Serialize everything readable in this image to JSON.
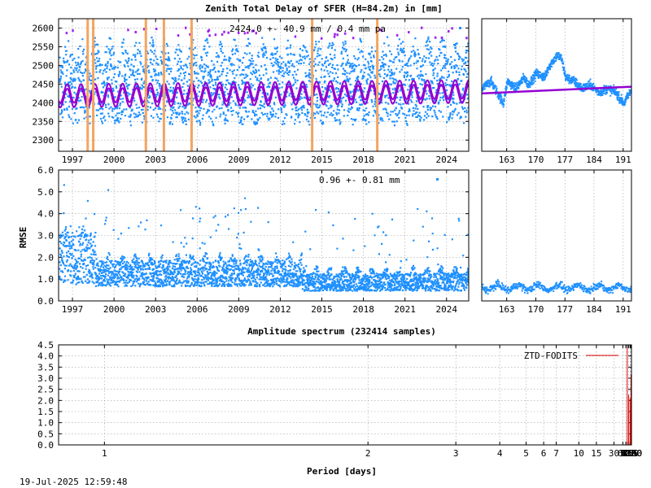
{
  "title": "Zenith Total Delay of SFER (H=84.2m) in [mm]",
  "footer_timestamp": "19-Jul-2025 12:59:48",
  "colors": {
    "ztd_points": "#1e90ff",
    "model": "#9400d3",
    "outlier": "#a020f0",
    "breaks": "#f4a460",
    "spectrum": "#e00000"
  },
  "chart_data": [
    {
      "id": "ztd_main",
      "type": "scatter",
      "annotation": "2424.0 +-  40.9 mm /  0.4 mm pa",
      "xlim": [
        1996.0,
        2025.6
      ],
      "ylim": [
        2270,
        2625
      ],
      "x_ticks": [
        1997,
        2000,
        2003,
        2006,
        2009,
        2012,
        2015,
        2018,
        2021,
        2024
      ],
      "x_tick_labels": [
        "1997",
        "2000",
        "2003",
        "2006",
        "2009",
        "2012",
        "2015",
        "2018",
        "2021",
        "2024"
      ],
      "y_ticks": [
        2300,
        2350,
        2400,
        2450,
        2500,
        2550,
        2600
      ],
      "y_tick_labels": [
        "2300",
        "2350",
        "2400",
        "2450",
        "2500",
        "2550",
        "2600"
      ],
      "mean": 2424.0,
      "stdev": 40.9,
      "trend_mm_per_year": 0.4,
      "seasonal_amplitude": 25,
      "seasonal_peak_fraction": 0.62,
      "envelope": {
        "low": [
          2340,
          2365
        ],
        "high": [
          2520,
          2580
        ]
      },
      "breaks": [
        1998.1,
        1998.5,
        2002.3,
        2003.6,
        2005.6,
        2014.3,
        2019.0
      ],
      "grid": true
    },
    {
      "id": "ztd_zoom",
      "type": "scatter",
      "xlim": [
        157,
        193
      ],
      "ylim": [
        2270,
        2625
      ],
      "x_ticks": [
        163,
        170,
        177,
        184,
        191
      ],
      "x_tick_labels": [
        "163",
        "170",
        "177",
        "184",
        "191"
      ],
      "model_line": [
        [
          157,
          2425
        ],
        [
          193,
          2443
        ]
      ],
      "grid": true
    },
    {
      "id": "rmse_main",
      "type": "scatter",
      "annotation": "0.96 +-  0.81 mm",
      "ylabel": "RMSE",
      "xlim": [
        1996.0,
        2025.6
      ],
      "ylim": [
        0.0,
        6.0
      ],
      "x_ticks": [
        1997,
        2000,
        2003,
        2006,
        2009,
        2012,
        2015,
        2018,
        2021,
        2024
      ],
      "x_tick_labels": [
        "1997",
        "2000",
        "2003",
        "2006",
        "2009",
        "2012",
        "2015",
        "2018",
        "2021",
        "2024"
      ],
      "y_ticks": [
        0.0,
        1.0,
        2.0,
        3.0,
        4.0,
        5.0,
        6.0
      ],
      "y_tick_labels": [
        "0.0",
        "1.0",
        "2.0",
        "3.0",
        "4.0",
        "5.0",
        "6.0"
      ],
      "mean": 0.96,
      "stdev": 0.81,
      "grid": true
    },
    {
      "id": "rmse_zoom",
      "type": "scatter",
      "xlim": [
        157,
        193
      ],
      "ylim": [
        0.0,
        6.0
      ],
      "x_ticks": [
        163,
        170,
        177,
        184,
        191
      ],
      "x_tick_labels": [
        "163",
        "170",
        "177",
        "184",
        "191"
      ],
      "grid": true
    },
    {
      "id": "spectrum",
      "type": "line",
      "title": "Amplitude spectrum (232414 samples)",
      "xlabel": "Period [days]",
      "x_scale": "reciprocal (frequency-linear)",
      "xlim": [
        0.92,
        8760
      ],
      "ylim": [
        0.0,
        4.5
      ],
      "x_ticks": [
        1,
        2,
        3,
        4,
        5,
        6,
        7,
        10,
        15,
        30,
        61,
        91,
        122,
        183,
        365,
        730,
        2190,
        4380,
        8760
      ],
      "x_tick_labels": [
        "1",
        "2",
        "3",
        "4",
        "5",
        "6",
        "7",
        "10",
        "15",
        "30",
        "61",
        "91",
        "122",
        "183",
        "365",
        "730",
        "2190",
        "4380",
        "8760"
      ],
      "y_ticks": [
        0.0,
        0.5,
        1.0,
        1.5,
        2.0,
        2.5,
        3.0,
        3.5,
        4.0,
        4.5
      ],
      "y_tick_labels": [
        "0.0",
        "0.5",
        "1.0",
        "1.5",
        "2.0",
        "2.5",
        "3.0",
        "3.5",
        "4.0",
        "4.5"
      ],
      "legend": {
        "label": "ZTD-FODITS",
        "position": "top-right"
      },
      "peaks": [
        {
          "period": 122,
          "amplitude": 4.35
        },
        {
          "period": 183,
          "amplitude": 2.25
        },
        {
          "period": 365,
          "amplitude": 2.1
        },
        {
          "period": 730,
          "amplitude": 1.55
        },
        {
          "period": 1095,
          "amplitude": 3.15
        },
        {
          "period": 1460,
          "amplitude": 2.7
        },
        {
          "period": 2190,
          "amplitude": 0.9
        },
        {
          "period": 2920,
          "amplitude": 1.0
        },
        {
          "period": 4380,
          "amplitude": 0.45
        },
        {
          "period": 8760,
          "amplitude": 0.95
        }
      ],
      "grid": true
    }
  ]
}
